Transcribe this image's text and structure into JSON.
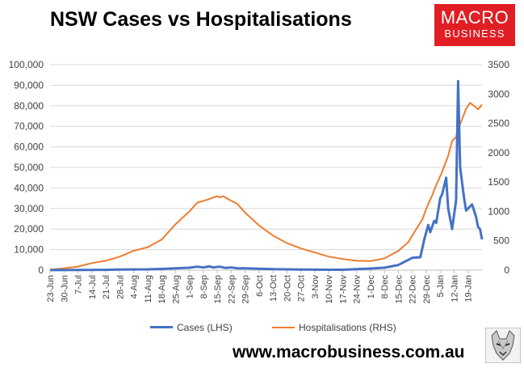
{
  "colors": {
    "cases": "#4472c4",
    "hospitalisations": "#ed7d31",
    "brand": "#e01e24"
  },
  "logo": {
    "line1": "MACRO",
    "line2": "BUSINESS"
  },
  "footer": {
    "url": "www.macrobusiness.com.au",
    "mascot_icon": "wolf-icon"
  },
  "chart_data": {
    "type": "line",
    "title": "NSW Cases vs Hospitalisations",
    "categories": [
      "23-Jun",
      "30-Jun",
      "7-Jul",
      "14-Jul",
      "21-Jul",
      "28-Jul",
      "4-Aug",
      "11-Aug",
      "18-Aug",
      "25-Aug",
      "1-Sep",
      "8-Sep",
      "15-Sep",
      "22-Sep",
      "29-Sep",
      "6-Oct",
      "13-Oct",
      "20-Oct",
      "27-Oct",
      "3-Nov",
      "10-Nov",
      "17-Nov",
      "24-Nov",
      "1-Dec",
      "8-Dec",
      "15-Dec",
      "22-Dec",
      "29-Dec",
      "5-Jan",
      "12-Jan",
      "19-Jan"
    ],
    "y_left": {
      "min": 0,
      "max": 100000,
      "step": 10000,
      "ticks": [
        "0",
        "10,000",
        "20,000",
        "30,000",
        "40,000",
        "50,000",
        "60,000",
        "70,000",
        "80,000",
        "90,000",
        "100,000"
      ]
    },
    "y_right": {
      "min": 0,
      "max": 3500,
      "step": 500,
      "ticks": [
        "0",
        "500",
        "1000",
        "1500",
        "2000",
        "2500",
        "3000",
        "3500"
      ]
    },
    "legend_position": "bottom",
    "grid": true,
    "series": [
      {
        "name": "Cases (LHS)",
        "axis": "left",
        "points": [
          [
            0,
            20
          ],
          [
            7,
            25
          ],
          [
            14,
            90
          ],
          [
            21,
            130
          ],
          [
            28,
            170
          ],
          [
            35,
            290
          ],
          [
            42,
            350
          ],
          [
            49,
            380
          ],
          [
            56,
            600
          ],
          [
            63,
            900
          ],
          [
            70,
            1200
          ],
          [
            74,
            1700
          ],
          [
            77,
            1300
          ],
          [
            80,
            1800
          ],
          [
            82,
            1300
          ],
          [
            85,
            1700
          ],
          [
            88,
            1100
          ],
          [
            91,
            1300
          ],
          [
            94,
            900
          ],
          [
            98,
            900
          ],
          [
            105,
            700
          ],
          [
            112,
            500
          ],
          [
            119,
            400
          ],
          [
            126,
            300
          ],
          [
            133,
            250
          ],
          [
            140,
            200
          ],
          [
            147,
            200
          ],
          [
            154,
            500
          ],
          [
            161,
            800
          ],
          [
            168,
            1200
          ],
          [
            175,
            2500
          ],
          [
            178,
            4000
          ],
          [
            182,
            6000
          ],
          [
            186,
            6300
          ],
          [
            188,
            15000
          ],
          [
            190,
            22000
          ],
          [
            191,
            18500
          ],
          [
            193,
            24000
          ],
          [
            194,
            23000
          ],
          [
            196,
            35000
          ],
          [
            197,
            37000
          ],
          [
            199,
            45000
          ],
          [
            200,
            30000
          ],
          [
            202,
            20000
          ],
          [
            204,
            34000
          ],
          [
            205,
            92000
          ],
          [
            206,
            50000
          ],
          [
            208,
            35000
          ],
          [
            209,
            29000
          ],
          [
            211,
            31000
          ],
          [
            212,
            32000
          ],
          [
            214,
            26000
          ],
          [
            215,
            21000
          ],
          [
            216,
            20000
          ],
          [
            217,
            15000
          ]
        ]
      },
      {
        "name": "Hospitalisations (RHS)",
        "axis": "right",
        "points": [
          [
            0,
            8
          ],
          [
            7,
            30
          ],
          [
            14,
            60
          ],
          [
            21,
            120
          ],
          [
            28,
            160
          ],
          [
            35,
            230
          ],
          [
            42,
            330
          ],
          [
            49,
            390
          ],
          [
            56,
            520
          ],
          [
            63,
            780
          ],
          [
            70,
            1000
          ],
          [
            74,
            1150
          ],
          [
            77,
            1180
          ],
          [
            80,
            1210
          ],
          [
            82,
            1240
          ],
          [
            84,
            1260
          ],
          [
            85,
            1240
          ],
          [
            87,
            1260
          ],
          [
            90,
            1200
          ],
          [
            94,
            1130
          ],
          [
            98,
            980
          ],
          [
            105,
            760
          ],
          [
            112,
            590
          ],
          [
            119,
            460
          ],
          [
            126,
            370
          ],
          [
            133,
            300
          ],
          [
            140,
            230
          ],
          [
            147,
            190
          ],
          [
            154,
            160
          ],
          [
            161,
            155
          ],
          [
            168,
            200
          ],
          [
            175,
            330
          ],
          [
            180,
            480
          ],
          [
            184,
            700
          ],
          [
            187,
            860
          ],
          [
            189,
            1050
          ],
          [
            192,
            1280
          ],
          [
            194,
            1450
          ],
          [
            197,
            1680
          ],
          [
            200,
            1950
          ],
          [
            202,
            2200
          ],
          [
            204,
            2270
          ],
          [
            205,
            2400
          ],
          [
            207,
            2570
          ],
          [
            209,
            2750
          ],
          [
            211,
            2850
          ],
          [
            213,
            2800
          ],
          [
            215,
            2740
          ],
          [
            217,
            2820
          ]
        ]
      }
    ],
    "x_range_days": [
      0,
      217
    ]
  }
}
